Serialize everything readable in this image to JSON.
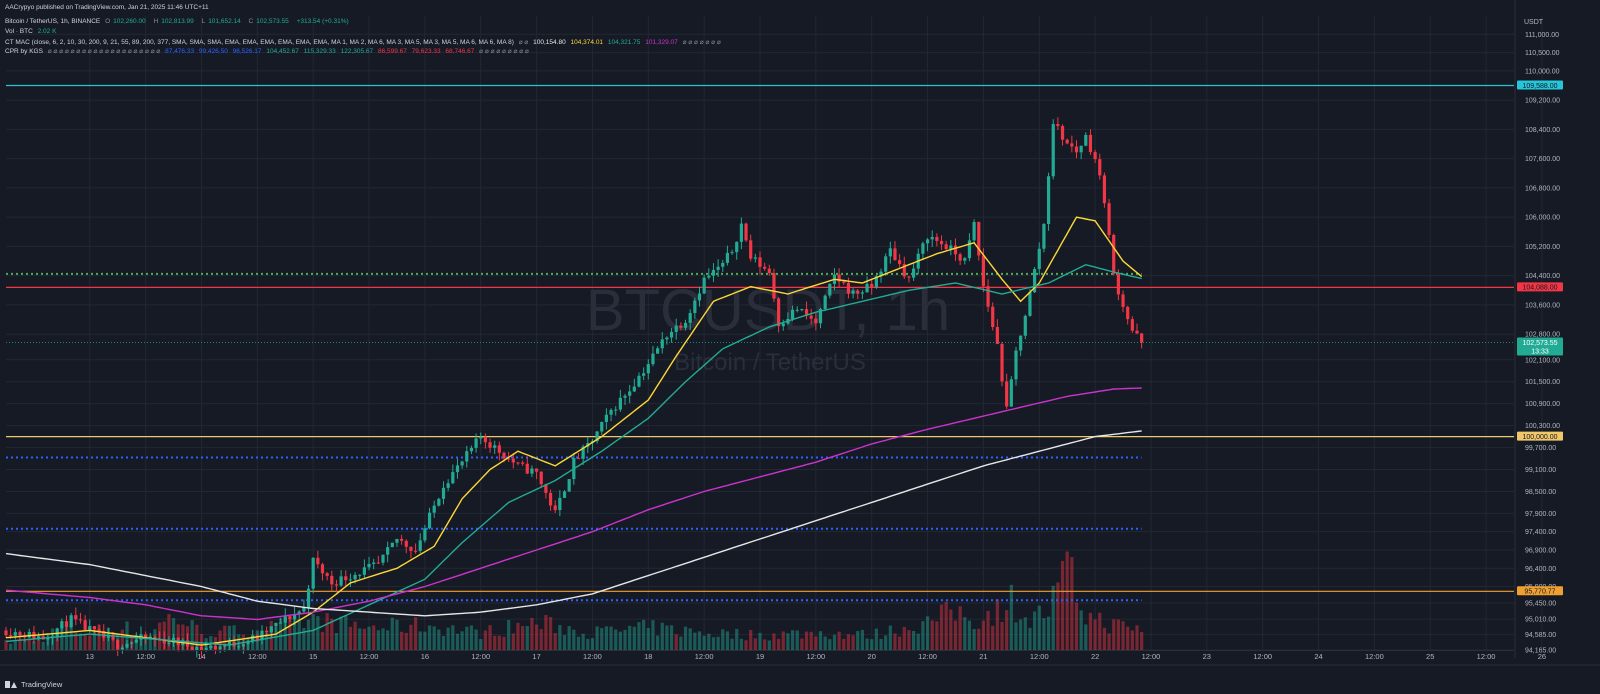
{
  "publisher_line": "AACrypyo published on TradingView.com, Jan 21, 2025 11:46 UTC+11",
  "legend": {
    "symbol": "Bitcoin / TetherUS, 1h, BINANCE",
    "o_label": "O",
    "o_value": "102,260.00",
    "h_label": "H",
    "h_value": "102,813.99",
    "l_label": "L",
    "l_value": "101,652.14",
    "c_label": "C",
    "c_value": "102,573.55",
    "change": "+313.54 (+0.31%)",
    "vol_label": "Vol · BTC",
    "vol_value": "2.02 K",
    "mac_label": "CT MAC (close, 6, 2, 10, 30, 200, 9, 21, 55, 89, 200, 377, SMA, SMA, SMA, EMA, EMA, EMA, EMA, EMA, EMA, MA 1, MA 2, MA 6, MA 3, MA 5, MA 3, MA 5, MA 6, MA 6, MA 8)",
    "mac_dots": "⌀ ⌀",
    "mac_v1": "100,154.80",
    "mac_v2": "104,374.01",
    "mac_v3": "104,321.75",
    "mac_v4": "101,329.07",
    "mac_tail": "⌀ ⌀ ⌀ ⌀ ⌀ ⌀ ⌀",
    "cpr_label": "CPR by KGS",
    "cpr_dots": "⌀ ⌀ ⌀ ⌀ ⌀ ⌀ ⌀ ⌀ ⌀ ⌀ ⌀ ⌀ ⌀ ⌀ ⌀ ⌀ ⌀ ⌀ ⌀ ⌀",
    "cpr_v1": "87,476.33",
    "cpr_v2": "99,426.50",
    "cpr_v3": "96,526.17",
    "cpr_v4": "104,452.67",
    "cpr_v5": "115,329.33",
    "cpr_v6": "122,305.67",
    "cpr_v7": "86,599.67",
    "cpr_v8": "79,623.33",
    "cpr_v9": "68,746.67",
    "cpr_tail": "⌀ ⌀ ⌀ ⌀ ⌀ ⌀ ⌀ ⌀ ⌀"
  },
  "footer_brand": "TradingView",
  "colors": {
    "background": "#161a25",
    "grid": "#232733",
    "up": "#22ab94",
    "down": "#f23645",
    "cyan": "#22ab94",
    "yellow": "#fdd835",
    "purple": "#cc33cc",
    "white": "#e6e6e6",
    "blue_dot": "#2962ff",
    "green_dot": "#4caf50",
    "text": "#b2b5be",
    "level_cyan": "#26c6da",
    "level_red": "#f23645",
    "level_yellow": "#f0c86a",
    "level_orange": "#f0a030"
  },
  "chart_data": {
    "type": "candlestick",
    "symbol_watermark": "BTCUSDT, 1h",
    "watermark_sub": "Bitcoin / TetherUS",
    "currency": "USDT",
    "ylim": [
      94165,
      111500
    ],
    "xlim_hours": [
      -18,
      306
    ],
    "y_ticks": [
      {
        "v": 111000,
        "label": "111,000.00"
      },
      {
        "v": 110500,
        "label": "110,500.00"
      },
      {
        "v": 110000,
        "label": "110,000.00"
      },
      {
        "v": 109200,
        "label": "109,200.00"
      },
      {
        "v": 108400,
        "label": "108,400.00"
      },
      {
        "v": 107600,
        "label": "107,600.00"
      },
      {
        "v": 106800,
        "label": "106,800.00"
      },
      {
        "v": 106000,
        "label": "106,000.00"
      },
      {
        "v": 105200,
        "label": "105,200.00"
      },
      {
        "v": 104400,
        "label": "104,400.00"
      },
      {
        "v": 103600,
        "label": "103,600.00"
      },
      {
        "v": 102800,
        "label": "102,800.00"
      },
      {
        "v": 102100,
        "label": "102,100.00"
      },
      {
        "v": 101500,
        "label": "101,500.00"
      },
      {
        "v": 100900,
        "label": "100,900.00"
      },
      {
        "v": 100300,
        "label": "100,300.00"
      },
      {
        "v": 99700,
        "label": "99,700.00"
      },
      {
        "v": 99100,
        "label": "99,100.00"
      },
      {
        "v": 98500,
        "label": "98,500.00"
      },
      {
        "v": 97900,
        "label": "97,900.00"
      },
      {
        "v": 97400,
        "label": "97,400.00"
      },
      {
        "v": 96900,
        "label": "96,900.00"
      },
      {
        "v": 96400,
        "label": "96,400.00"
      },
      {
        "v": 95900,
        "label": "95,900.00"
      },
      {
        "v": 95450,
        "label": "95,450.00"
      },
      {
        "v": 95010,
        "label": "95,010.00"
      },
      {
        "v": 94585,
        "label": "94,585.00"
      },
      {
        "v": 94165,
        "label": "94,165.00"
      }
    ],
    "x_ticks": [
      {
        "h": 0,
        "label": "13"
      },
      {
        "h": 12,
        "label": "12:00"
      },
      {
        "h": 24,
        "label": "14"
      },
      {
        "h": 36,
        "label": "12:00"
      },
      {
        "h": 48,
        "label": "15"
      },
      {
        "h": 60,
        "label": "12:00"
      },
      {
        "h": 72,
        "label": "16"
      },
      {
        "h": 84,
        "label": "12:00"
      },
      {
        "h": 96,
        "label": "17"
      },
      {
        "h": 108,
        "label": "12:00"
      },
      {
        "h": 120,
        "label": "18"
      },
      {
        "h": 132,
        "label": "12:00"
      },
      {
        "h": 144,
        "label": "19"
      },
      {
        "h": 156,
        "label": "12:00"
      },
      {
        "h": 168,
        "label": "20"
      },
      {
        "h": 180,
        "label": "12:00"
      },
      {
        "h": 192,
        "label": "21"
      },
      {
        "h": 204,
        "label": "12:00"
      },
      {
        "h": 216,
        "label": "22"
      },
      {
        "h": 228,
        "label": "12:00"
      },
      {
        "h": 240,
        "label": "23"
      },
      {
        "h": 252,
        "label": "12:00"
      },
      {
        "h": 264,
        "label": "24"
      },
      {
        "h": 276,
        "label": "12:00"
      },
      {
        "h": 288,
        "label": "25"
      },
      {
        "h": 300,
        "label": "12:00"
      },
      {
        "h": 312,
        "label": "26"
      }
    ],
    "price_labels": [
      {
        "v": 109600,
        "label": "109,588.00",
        "color": "#26c6da"
      },
      {
        "v": 104080,
        "label": "104,088.00",
        "color": "#f23645"
      },
      {
        "v": 102573.55,
        "label": "102,573.55",
        "sub": "13:33",
        "color": "#22ab94"
      },
      {
        "v": 100000,
        "label": "100,000.00",
        "color": "#f0c86a"
      },
      {
        "v": 95770,
        "label": "95,770.77",
        "color": "#f0a030"
      }
    ],
    "levels": [
      {
        "v": 109600,
        "style": "solid",
        "color": "#26c6da"
      },
      {
        "v": 104450,
        "style": "dotted",
        "color": "#4caf50"
      },
      {
        "v": 104080,
        "style": "solid",
        "color": "#f23645"
      },
      {
        "v": 100000,
        "style": "solid",
        "color": "#f0c86a"
      },
      {
        "v": 99430,
        "style": "dotted",
        "color": "#2962ff"
      },
      {
        "v": 97480,
        "style": "dotted",
        "color": "#2962ff"
      },
      {
        "v": 95770,
        "style": "solid",
        "color": "#f0a030"
      },
      {
        "v": 95526,
        "style": "dotted",
        "color": "#2962ff"
      }
    ],
    "price_anchors": [
      [
        -18,
        94700
      ],
      [
        -10,
        94500
      ],
      [
        -4,
        95000
      ],
      [
        0,
        94700
      ],
      [
        6,
        94300
      ],
      [
        12,
        94500
      ],
      [
        18,
        94400
      ],
      [
        24,
        94200
      ],
      [
        30,
        94300
      ],
      [
        36,
        94500
      ],
      [
        42,
        95000
      ],
      [
        46,
        95300
      ],
      [
        48,
        96600
      ],
      [
        52,
        96000
      ],
      [
        58,
        96300
      ],
      [
        62,
        96500
      ],
      [
        66,
        97200
      ],
      [
        70,
        96900
      ],
      [
        72,
        97500
      ],
      [
        76,
        98700
      ],
      [
        80,
        99300
      ],
      [
        84,
        100000
      ],
      [
        88,
        99600
      ],
      [
        92,
        99200
      ],
      [
        96,
        99000
      ],
      [
        100,
        97900
      ],
      [
        104,
        99300
      ],
      [
        108,
        99900
      ],
      [
        112,
        100700
      ],
      [
        116,
        101300
      ],
      [
        120,
        102000
      ],
      [
        124,
        102800
      ],
      [
        128,
        103200
      ],
      [
        132,
        104300
      ],
      [
        136,
        104700
      ],
      [
        138,
        105100
      ],
      [
        140,
        105800
      ],
      [
        142,
        104900
      ],
      [
        146,
        104500
      ],
      [
        148,
        103100
      ],
      [
        152,
        103500
      ],
      [
        156,
        103100
      ],
      [
        160,
        104400
      ],
      [
        164,
        103900
      ],
      [
        168,
        104100
      ],
      [
        172,
        105100
      ],
      [
        176,
        104300
      ],
      [
        180,
        105500
      ],
      [
        184,
        105200
      ],
      [
        188,
        104800
      ],
      [
        190,
        105800
      ],
      [
        192,
        104100
      ],
      [
        195,
        102500
      ],
      [
        197,
        100700
      ],
      [
        199,
        102300
      ],
      [
        202,
        103900
      ],
      [
        205,
        105800
      ],
      [
        207,
        108600
      ],
      [
        210,
        108000
      ],
      [
        212,
        107800
      ],
      [
        214,
        108200
      ],
      [
        216,
        107600
      ],
      [
        218,
        106500
      ],
      [
        220,
        104400
      ],
      [
        222,
        103600
      ],
      [
        224,
        102900
      ],
      [
        226,
        102574
      ]
    ],
    "volume_anchors": [
      [
        -18,
        0.15
      ],
      [
        -10,
        0.25
      ],
      [
        -6,
        0.45
      ],
      [
        0,
        0.35
      ],
      [
        6,
        0.5
      ],
      [
        12,
        0.3
      ],
      [
        18,
        0.7
      ],
      [
        24,
        0.35
      ],
      [
        36,
        0.4
      ],
      [
        48,
        0.6
      ],
      [
        60,
        0.45
      ],
      [
        72,
        0.5
      ],
      [
        84,
        0.35
      ],
      [
        96,
        0.55
      ],
      [
        108,
        0.35
      ],
      [
        120,
        0.45
      ],
      [
        132,
        0.35
      ],
      [
        144,
        0.3
      ],
      [
        156,
        0.35
      ],
      [
        168,
        0.3
      ],
      [
        180,
        0.55
      ],
      [
        186,
        0.8
      ],
      [
        190,
        0.6
      ],
      [
        194,
        0.75
      ],
      [
        198,
        1.0
      ],
      [
        202,
        0.6
      ],
      [
        206,
        0.8
      ],
      [
        210,
        1.6
      ],
      [
        214,
        0.7
      ],
      [
        220,
        0.5
      ],
      [
        226,
        0.4
      ]
    ],
    "ma_series": [
      {
        "name": "MA fast",
        "color": "#fdd835",
        "anchors": [
          [
            -18,
            94500
          ],
          [
            0,
            94700
          ],
          [
            24,
            94300
          ],
          [
            40,
            94600
          ],
          [
            48,
            95200
          ],
          [
            56,
            96000
          ],
          [
            66,
            96400
          ],
          [
            74,
            97000
          ],
          [
            80,
            98300
          ],
          [
            86,
            99100
          ],
          [
            92,
            99600
          ],
          [
            100,
            99200
          ],
          [
            110,
            100000
          ],
          [
            120,
            101000
          ],
          [
            126,
            102200
          ],
          [
            134,
            103700
          ],
          [
            142,
            104100
          ],
          [
            150,
            103900
          ],
          [
            160,
            104300
          ],
          [
            166,
            104200
          ],
          [
            172,
            104500
          ],
          [
            182,
            105000
          ],
          [
            190,
            105300
          ],
          [
            196,
            104300
          ],
          [
            200,
            103700
          ],
          [
            204,
            104200
          ],
          [
            212,
            106000
          ],
          [
            216,
            105900
          ],
          [
            222,
            104800
          ],
          [
            226,
            104374
          ]
        ]
      },
      {
        "name": "MA mid",
        "color": "#22ab94",
        "anchors": [
          [
            -18,
            94400
          ],
          [
            0,
            94600
          ],
          [
            30,
            94300
          ],
          [
            48,
            94700
          ],
          [
            60,
            95400
          ],
          [
            72,
            96100
          ],
          [
            80,
            97100
          ],
          [
            90,
            98200
          ],
          [
            100,
            98800
          ],
          [
            110,
            99600
          ],
          [
            120,
            100500
          ],
          [
            128,
            101500
          ],
          [
            136,
            102400
          ],
          [
            146,
            103000
          ],
          [
            156,
            103400
          ],
          [
            166,
            103700
          ],
          [
            176,
            104000
          ],
          [
            186,
            104200
          ],
          [
            196,
            103900
          ],
          [
            206,
            104200
          ],
          [
            214,
            104700
          ],
          [
            220,
            104500
          ],
          [
            226,
            104322
          ]
        ]
      },
      {
        "name": "MA slow",
        "color": "#cc33cc",
        "anchors": [
          [
            -18,
            95800
          ],
          [
            0,
            95600
          ],
          [
            12,
            95400
          ],
          [
            24,
            95100
          ],
          [
            36,
            95000
          ],
          [
            48,
            95200
          ],
          [
            60,
            95500
          ],
          [
            72,
            95900
          ],
          [
            84,
            96400
          ],
          [
            96,
            96900
          ],
          [
            108,
            97400
          ],
          [
            120,
            98000
          ],
          [
            132,
            98500
          ],
          [
            144,
            98900
          ],
          [
            156,
            99300
          ],
          [
            168,
            99800
          ],
          [
            180,
            100200
          ],
          [
            190,
            100500
          ],
          [
            200,
            100800
          ],
          [
            210,
            101100
          ],
          [
            220,
            101300
          ],
          [
            226,
            101329
          ]
        ]
      },
      {
        "name": "MA 200",
        "color": "#e6e6e6",
        "anchors": [
          [
            -18,
            96800
          ],
          [
            0,
            96500
          ],
          [
            12,
            96200
          ],
          [
            24,
            95900
          ],
          [
            36,
            95500
          ],
          [
            48,
            95300
          ],
          [
            60,
            95200
          ],
          [
            72,
            95100
          ],
          [
            84,
            95200
          ],
          [
            96,
            95400
          ],
          [
            108,
            95700
          ],
          [
            120,
            96200
          ],
          [
            132,
            96700
          ],
          [
            144,
            97200
          ],
          [
            156,
            97700
          ],
          [
            168,
            98200
          ],
          [
            180,
            98700
          ],
          [
            192,
            99200
          ],
          [
            204,
            99600
          ],
          [
            216,
            100000
          ],
          [
            226,
            100155
          ]
        ]
      }
    ]
  }
}
